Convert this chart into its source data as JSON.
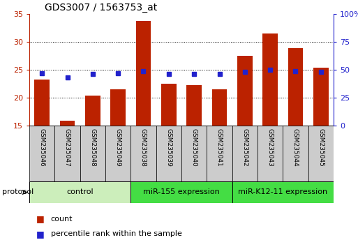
{
  "title": "GDS3007 / 1563753_at",
  "samples": [
    "GSM235046",
    "GSM235047",
    "GSM235048",
    "GSM235049",
    "GSM235038",
    "GSM235039",
    "GSM235040",
    "GSM235041",
    "GSM235042",
    "GSM235043",
    "GSM235044",
    "GSM235045"
  ],
  "counts": [
    23.2,
    15.9,
    20.4,
    21.5,
    33.8,
    22.5,
    22.2,
    21.5,
    27.5,
    31.5,
    28.9,
    25.4
  ],
  "percentile_ranks": [
    47,
    43,
    46,
    47,
    49,
    46,
    46,
    46,
    48,
    50,
    49,
    48
  ],
  "bar_color": "#bb2200",
  "dot_color": "#2222cc",
  "ylim_left": [
    15,
    35
  ],
  "ylim_right": [
    0,
    100
  ],
  "yticks_left": [
    15,
    20,
    25,
    30,
    35
  ],
  "yticks_right": [
    0,
    25,
    50,
    75,
    100
  ],
  "yticklabels_right": [
    "0",
    "25",
    "50",
    "75",
    "100%"
  ],
  "groups": [
    {
      "label": "control",
      "start": 0,
      "end": 4,
      "color": "#cceebb"
    },
    {
      "label": "miR-155 expression",
      "start": 4,
      "end": 8,
      "color": "#44dd44"
    },
    {
      "label": "miR-K12-11 expression",
      "start": 8,
      "end": 12,
      "color": "#44dd44"
    }
  ],
  "protocol_label": "protocol",
  "legend_count_label": "count",
  "legend_pct_label": "percentile rank within the sample",
  "bar_bottom": 15,
  "tick_label_color_left": "#bb2200",
  "tick_label_color_right": "#2222cc",
  "xlabels_bg": "#cccccc",
  "xlabels_border": "#888888"
}
